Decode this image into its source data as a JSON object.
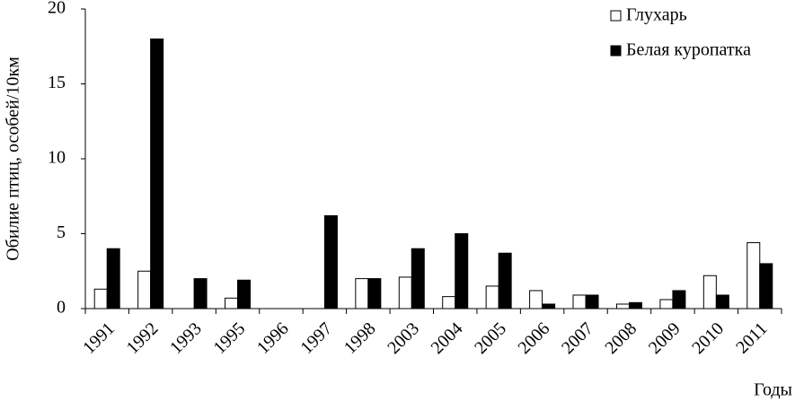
{
  "chart_data": {
    "type": "bar",
    "y_label": "Обилие птиц, особей/10км",
    "x_label": "Годы",
    "categories": [
      "1991",
      "1992",
      "1993",
      "1995",
      "1996",
      "1997",
      "1998",
      "2003",
      "2004",
      "2005",
      "2006",
      "2007",
      "2008",
      "2009",
      "2010",
      "2011"
    ],
    "series": [
      {
        "name": "Глухарь",
        "color": "#ffffff",
        "values": [
          1.3,
          2.5,
          0,
          0.7,
          0,
          0,
          2.0,
          2.1,
          0.8,
          1.5,
          1.2,
          0.9,
          0.3,
          0.6,
          2.2,
          4.4
        ]
      },
      {
        "name": "Белая куропатка",
        "color": "#000000",
        "values": [
          4.0,
          18,
          2.0,
          1.9,
          0,
          6.2,
          2.0,
          4.0,
          5.0,
          3.7,
          0.3,
          0.9,
          0.4,
          1.2,
          0.9,
          3.0
        ]
      }
    ],
    "ylim": [
      0,
      20
    ],
    "yticks": [
      0,
      5,
      10,
      15,
      20
    ],
    "legend": "upper right"
  }
}
